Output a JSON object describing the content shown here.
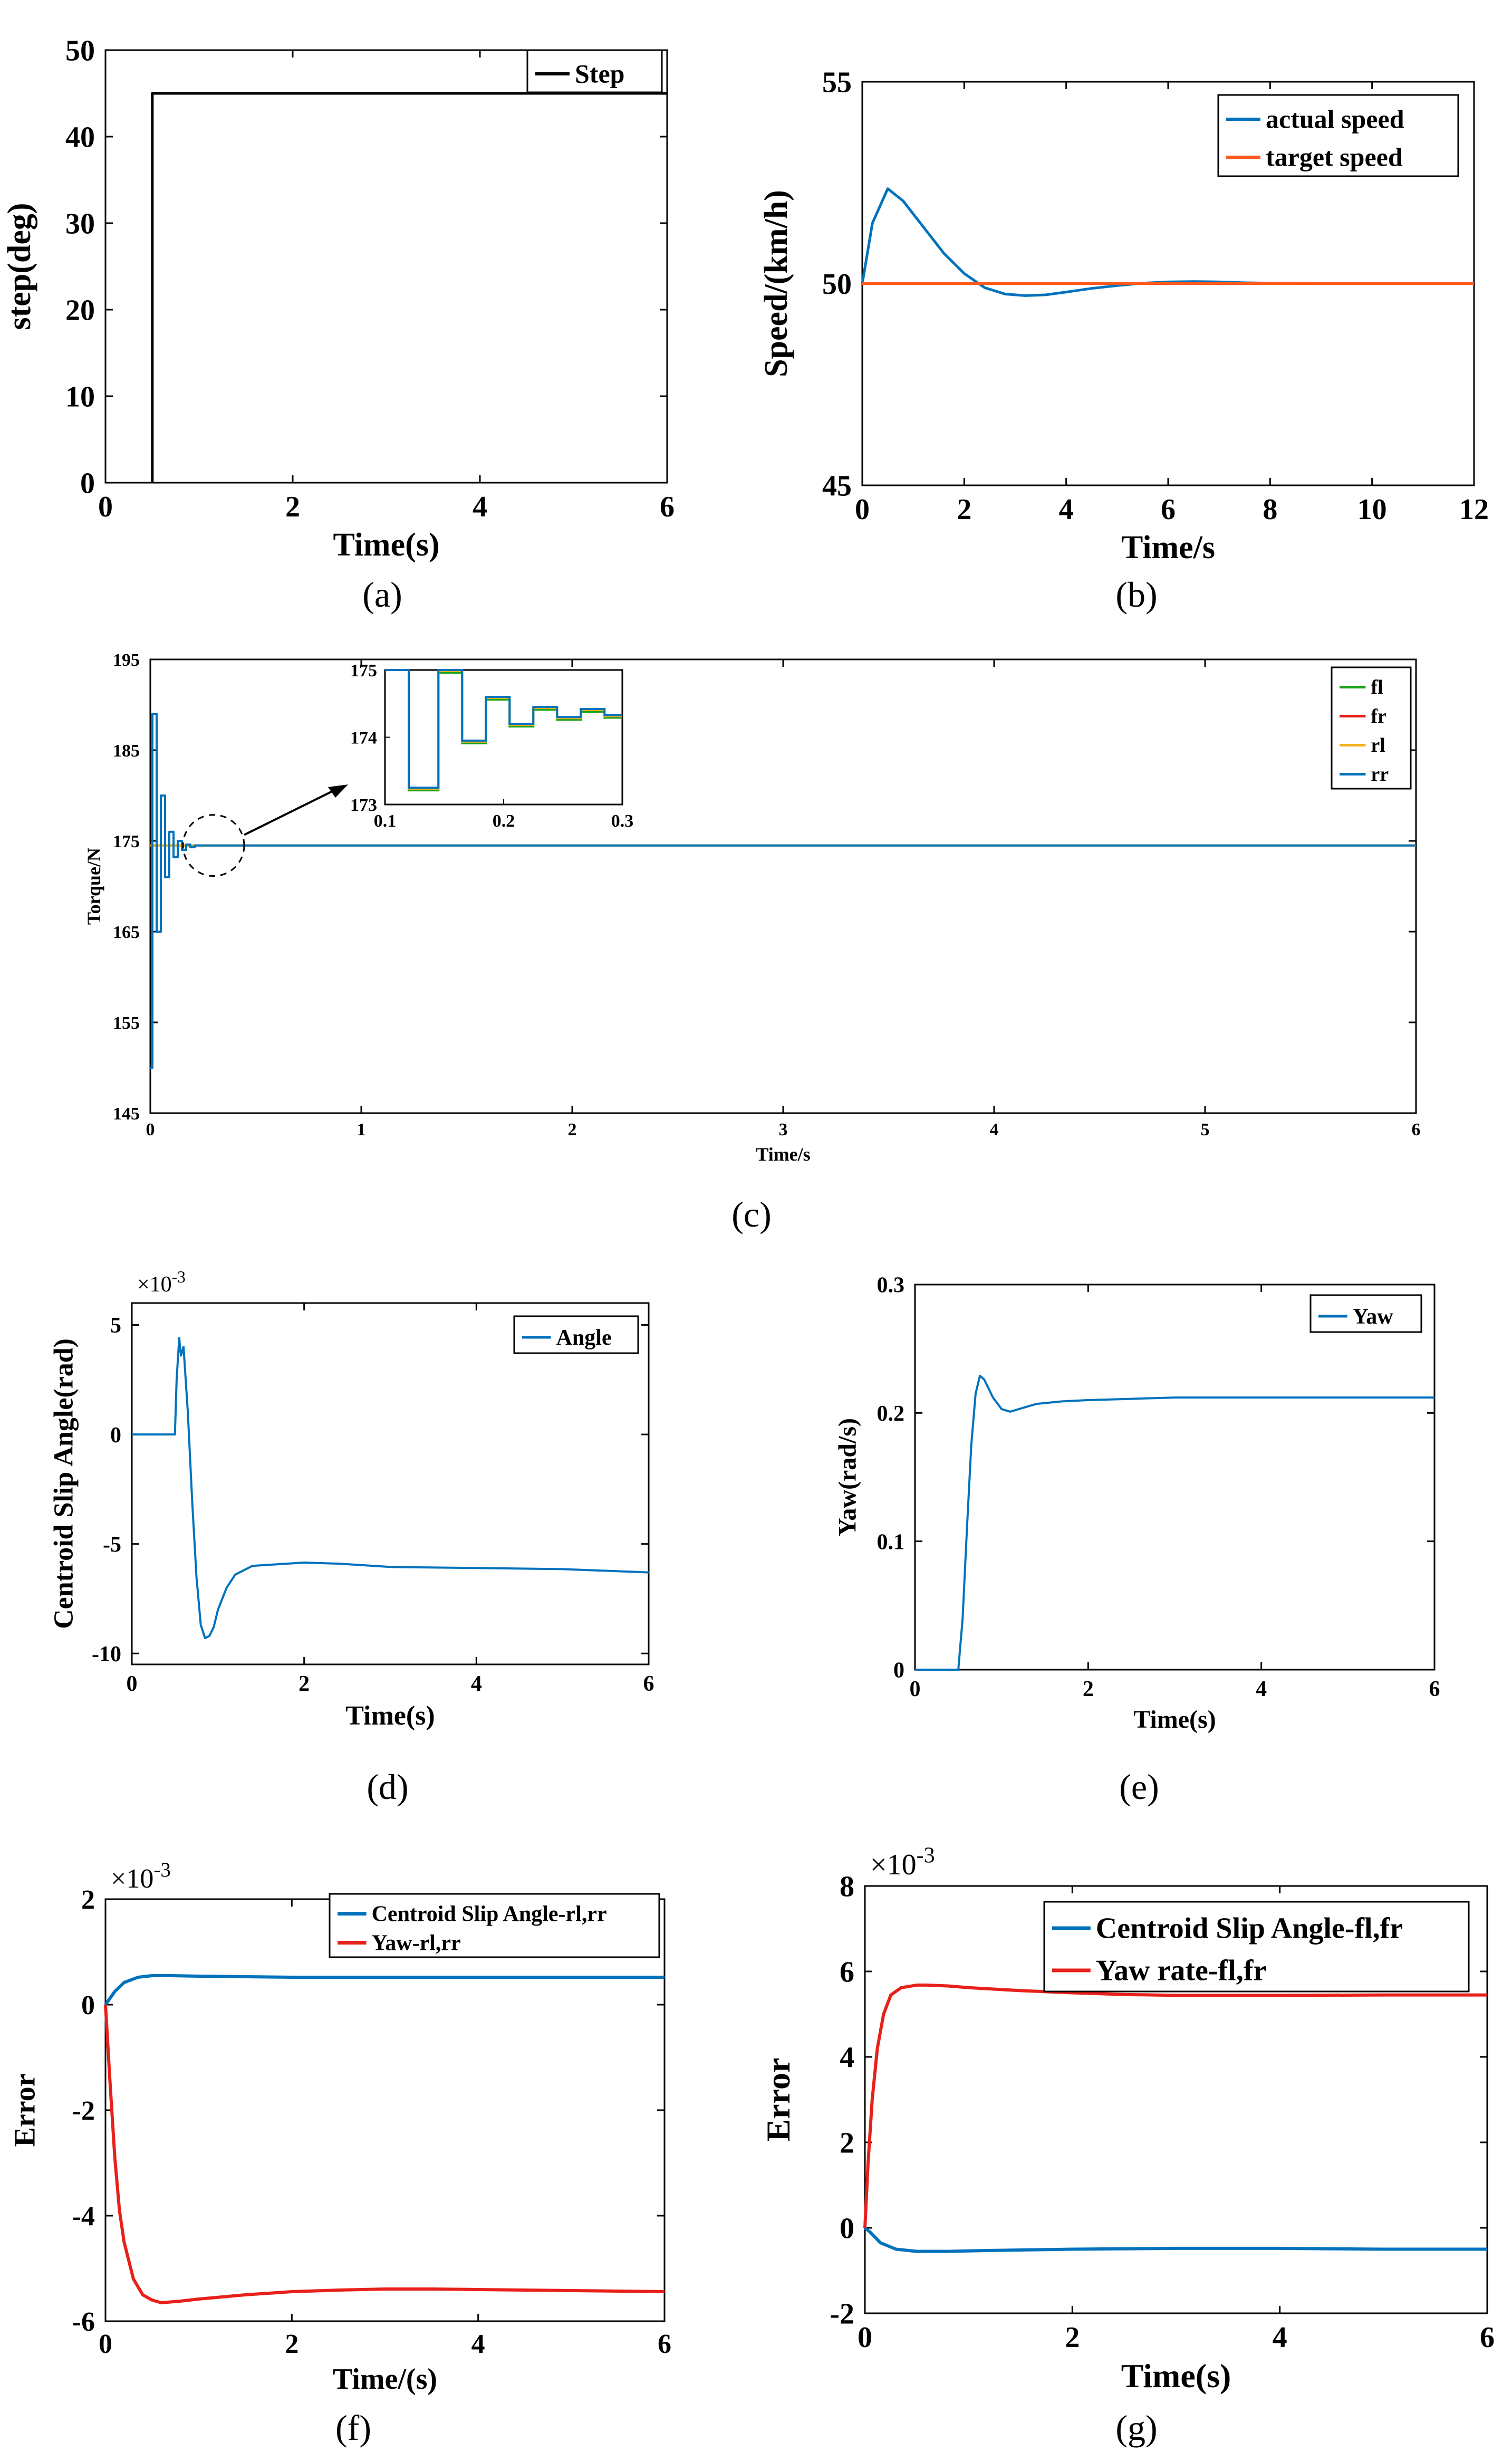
{
  "colors": {
    "blue": "#0072bd",
    "orange": "#ff5a1e",
    "green": "#19a319",
    "red": "#e8201a",
    "yellow": "#f2b21a",
    "black": "#000000"
  },
  "chart_data": [
    {
      "id": "a",
      "type": "line",
      "caption": "(a)",
      "xlabel": "Time(s)",
      "ylabel": "step(deg)",
      "xlim": [
        0,
        6
      ],
      "ylim": [
        0,
        50
      ],
      "xticks": [
        0,
        2,
        4,
        6
      ],
      "yticks": [
        0,
        10,
        20,
        30,
        40,
        50
      ],
      "legend": "top-right",
      "series": [
        {
          "name": "Step",
          "color": "black",
          "x": [
            0.5,
            0.5,
            6
          ],
          "y": [
            0,
            45,
            45
          ]
        }
      ]
    },
    {
      "id": "b",
      "type": "line",
      "caption": "(b)",
      "xlabel": "Time/s",
      "ylabel": "Speed/(km/h)",
      "xlim": [
        0,
        12
      ],
      "ylim": [
        45,
        55
      ],
      "xticks": [
        0,
        2,
        4,
        6,
        8,
        10,
        12
      ],
      "yticks": [
        45,
        50,
        55
      ],
      "legend": "top-right",
      "series": [
        {
          "name": "actual speed",
          "color": "blue",
          "x": [
            0,
            0.2,
            0.5,
            0.8,
            1.2,
            1.6,
            2.0,
            2.4,
            2.8,
            3.2,
            3.6,
            4.0,
            4.5,
            5.0,
            5.5,
            6.0,
            6.5,
            7.0,
            7.5,
            8.0,
            9,
            10,
            11,
            12
          ],
          "y": [
            50.0,
            51.5,
            52.35,
            52.05,
            51.4,
            50.75,
            50.25,
            49.9,
            49.74,
            49.7,
            49.72,
            49.79,
            49.88,
            49.95,
            50.01,
            50.04,
            50.05,
            50.04,
            50.02,
            50.01,
            50,
            50,
            50,
            50
          ]
        },
        {
          "name": "target speed",
          "color": "orange",
          "x": [
            0,
            12
          ],
          "y": [
            50,
            50
          ]
        }
      ]
    },
    {
      "id": "c",
      "type": "line",
      "caption": "(c)",
      "xlabel": "Time/s",
      "ylabel": "Torque/N",
      "xlim": [
        0,
        6
      ],
      "ylim": [
        145,
        195
      ],
      "xticks": [
        0,
        1,
        2,
        3,
        4,
        5,
        6
      ],
      "yticks": [
        145,
        155,
        165,
        175,
        185,
        195
      ],
      "legend": "top-right",
      "series": [
        {
          "name": "fl",
          "color": "green",
          "x": [
            0,
            6
          ],
          "y": [
            174.5,
            174.5
          ]
        },
        {
          "name": "fr",
          "color": "red",
          "x": [
            0,
            6
          ],
          "y": [
            174.5,
            174.5
          ]
        },
        {
          "name": "rl",
          "color": "yellow",
          "x": [
            0,
            6
          ],
          "y": [
            174.5,
            174.5
          ]
        },
        {
          "name": "rr",
          "color": "blue",
          "x": [
            0,
            0.01,
            0.01,
            0.03,
            0.03,
            0.05,
            0.05,
            0.07,
            0.07,
            0.09,
            0.09,
            0.11,
            0.11,
            0.13,
            0.13,
            0.15,
            0.15,
            0.17,
            0.17,
            0.19,
            0.19,
            0.21,
            0.21,
            6
          ],
          "y": [
            150,
            150,
            189,
            189,
            165,
            165,
            180,
            180,
            171,
            171,
            176,
            176,
            173.2,
            173.2,
            175,
            175,
            174,
            174,
            174.6,
            174.6,
            174.3,
            174.3,
            174.5,
            174.5
          ]
        }
      ],
      "annotation": "arrow from dashed circle near t=0.3 to zoomed inset",
      "inset": {
        "xlim": [
          0.1,
          0.3
        ],
        "ylim": [
          173,
          175
        ],
        "xticks": [
          0.1,
          0.2,
          0.3
        ],
        "yticks": [
          173,
          174,
          175
        ],
        "x": [
          0.1,
          0.12,
          0.12,
          0.145,
          0.145,
          0.165,
          0.165,
          0.185,
          0.185,
          0.205,
          0.205,
          0.225,
          0.225,
          0.245,
          0.245,
          0.265,
          0.265,
          0.285,
          0.285,
          0.3
        ],
        "y": [
          175.2,
          175.2,
          173.25,
          173.25,
          175,
          175,
          173.95,
          173.95,
          174.6,
          174.6,
          174.2,
          174.2,
          174.45,
          174.45,
          174.3,
          174.3,
          174.42,
          174.42,
          174.33,
          174.33
        ]
      }
    },
    {
      "id": "d",
      "type": "line",
      "caption": "(d)",
      "xlabel": "Time(s)",
      "ylabel": "Centroid Slip Angle(rad)",
      "exponent": "×10",
      "exponent_power": "-3",
      "xlim": [
        0,
        6
      ],
      "ylim": [
        -10.5,
        6
      ],
      "xticks": [
        0,
        2,
        4,
        6
      ],
      "yticks": [
        -10,
        -5,
        0,
        5
      ],
      "legend": "top-right",
      "series": [
        {
          "name": "Angle",
          "color": "blue",
          "x": [
            0,
            0.5,
            0.52,
            0.55,
            0.57,
            0.6,
            0.65,
            0.7,
            0.75,
            0.8,
            0.85,
            0.9,
            0.95,
            1.0,
            1.1,
            1.2,
            1.4,
            1.6,
            2.0,
            2.4,
            3.0,
            4.0,
            5.0,
            6.0
          ],
          "y": [
            0,
            0,
            2.5,
            4.4,
            3.6,
            4.0,
            1.0,
            -3.0,
            -6.5,
            -8.7,
            -9.3,
            -9.2,
            -8.8,
            -8.0,
            -7.0,
            -6.4,
            -6.0,
            -5.95,
            -5.85,
            -5.9,
            -6.05,
            -6.1,
            -6.15,
            -6.3
          ]
        }
      ]
    },
    {
      "id": "e",
      "type": "line",
      "caption": "(e)",
      "xlabel": "Time(s)",
      "ylabel": "Yaw(rad/s)",
      "xlim": [
        0,
        6
      ],
      "ylim": [
        0,
        0.3
      ],
      "xticks": [
        0,
        2,
        4,
        6
      ],
      "yticks": [
        0,
        0.1,
        0.2,
        0.3
      ],
      "legend": "top-right",
      "series": [
        {
          "name": "Yaw",
          "color": "blue",
          "x": [
            0,
            0.5,
            0.55,
            0.6,
            0.65,
            0.7,
            0.75,
            0.8,
            0.9,
            1.0,
            1.1,
            1.2,
            1.4,
            1.7,
            2.0,
            2.5,
            3.0,
            4.0,
            5.0,
            6.0
          ],
          "y": [
            0,
            0,
            0.04,
            0.11,
            0.175,
            0.215,
            0.229,
            0.226,
            0.212,
            0.203,
            0.201,
            0.203,
            0.207,
            0.209,
            0.21,
            0.211,
            0.212,
            0.212,
            0.212,
            0.212
          ]
        }
      ]
    },
    {
      "id": "f",
      "type": "line",
      "caption": "(f)",
      "xlabel": "Time/(s)",
      "ylabel": "Error",
      "exponent": "×10",
      "exponent_power": "-3",
      "xlim": [
        0,
        6
      ],
      "ylim": [
        -6,
        2
      ],
      "xticks": [
        0,
        2,
        4,
        6
      ],
      "yticks": [
        -6,
        -4,
        -2,
        0,
        2
      ],
      "legend": "top-right",
      "series": [
        {
          "name": "Centroid Slip Angle-rl,rr",
          "color": "blue",
          "x": [
            0,
            0.1,
            0.2,
            0.35,
            0.5,
            0.7,
            1.0,
            1.5,
            2.0,
            3.0,
            4.0,
            5.0,
            6.0
          ],
          "y": [
            0,
            0.25,
            0.42,
            0.52,
            0.55,
            0.55,
            0.54,
            0.53,
            0.52,
            0.52,
            0.52,
            0.52,
            0.52
          ]
        },
        {
          "name": "Yaw-rl,rr",
          "color": "red",
          "x": [
            0,
            0.05,
            0.1,
            0.15,
            0.2,
            0.3,
            0.4,
            0.5,
            0.6,
            0.8,
            1.0,
            1.5,
            2.0,
            2.5,
            3.0,
            3.5,
            4.0,
            5.0,
            6.0
          ],
          "y": [
            0,
            -1.5,
            -2.9,
            -3.9,
            -4.5,
            -5.2,
            -5.5,
            -5.6,
            -5.65,
            -5.62,
            -5.58,
            -5.5,
            -5.44,
            -5.41,
            -5.39,
            -5.39,
            -5.4,
            -5.42,
            -5.44
          ]
        }
      ]
    },
    {
      "id": "g",
      "type": "line",
      "caption": "(g)",
      "xlabel": "Time(s)",
      "ylabel": "Error",
      "exponent": "×10",
      "exponent_power": "-3",
      "xlim": [
        0,
        6
      ],
      "ylim": [
        -2,
        8
      ],
      "xticks": [
        0,
        2,
        4,
        6
      ],
      "yticks": [
        -2,
        0,
        2,
        4,
        6,
        8
      ],
      "legend": "top-right",
      "series": [
        {
          "name": "Centroid Slip Angle-fl,fr",
          "color": "blue",
          "x": [
            0,
            0.05,
            0.15,
            0.3,
            0.5,
            0.8,
            1.2,
            2.0,
            3.0,
            4.0,
            5.0,
            6.0
          ],
          "y": [
            0,
            -0.1,
            -0.35,
            -0.5,
            -0.55,
            -0.55,
            -0.53,
            -0.5,
            -0.48,
            -0.48,
            -0.5,
            -0.5
          ]
        },
        {
          "name": "Yaw rate-fl,fr",
          "color": "red",
          "x": [
            0,
            0.03,
            0.07,
            0.12,
            0.18,
            0.25,
            0.35,
            0.5,
            0.6,
            0.8,
            1.0,
            1.5,
            2.0,
            2.5,
            3.0,
            4.0,
            5.0,
            6.0
          ],
          "y": [
            0,
            1.5,
            3.0,
            4.2,
            5.0,
            5.45,
            5.62,
            5.68,
            5.68,
            5.66,
            5.62,
            5.55,
            5.5,
            5.46,
            5.44,
            5.44,
            5.45,
            5.45
          ]
        }
      ]
    }
  ]
}
